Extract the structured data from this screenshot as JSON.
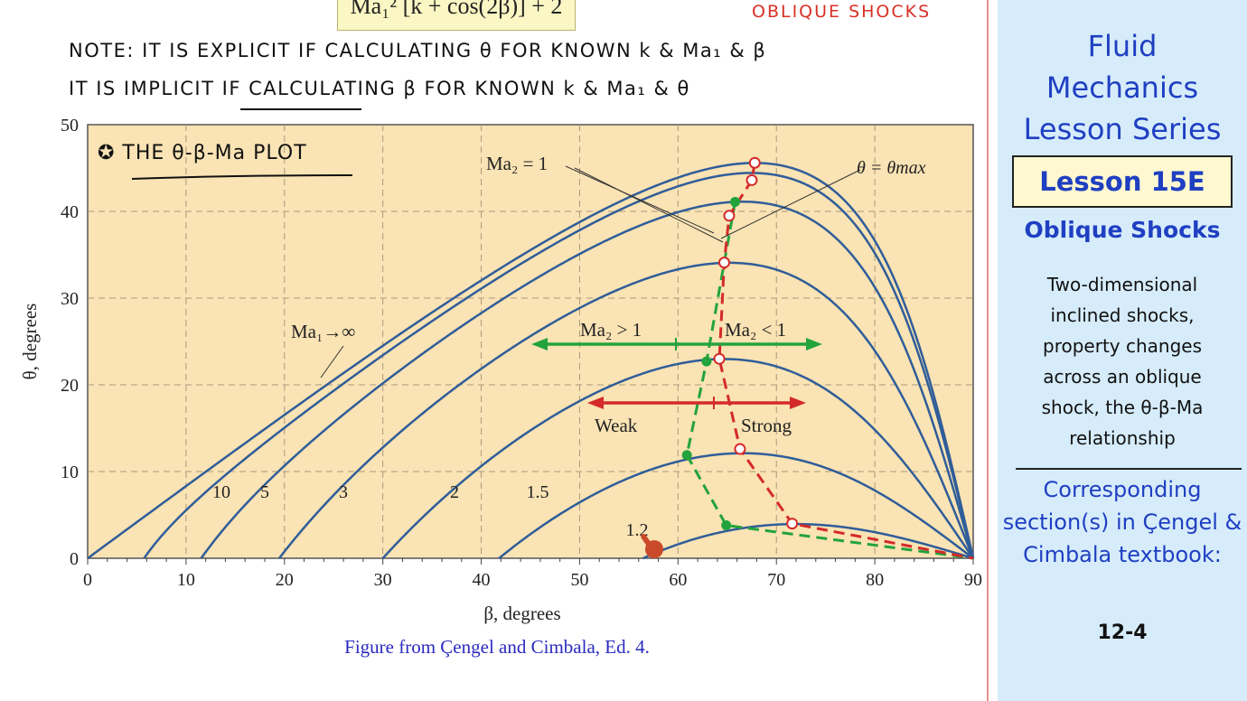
{
  "slide": {
    "top_formula": "Ma₁² [k + cos(2β)] + 2",
    "top_topic": "OBLIQUE SHOCKS",
    "note_line_1": "NOTE:  IT IS  EXPLICIT  IF CALCULATING θ  FOR KNOWN  k &  Ma₁  & β",
    "note_line_2": "IT IS  IMPLICIT  IF CALCULATING β  FOR KNOWN  k &  Ma₁  & θ",
    "plot_annotation": "✪ THE θ-β-Ma PLOT",
    "figure_credit": "Figure from Çengel and Cimbala, Ed. 4."
  },
  "sidebar": {
    "series_title": [
      "Fluid",
      "Mechanics",
      "Lesson Series"
    ],
    "lesson_number": "Lesson 15E",
    "lesson_topic": "Oblique Shocks",
    "description": "Two-dimensional inclined shocks, property changes across an oblique shock, the θ-β-Ma relationship",
    "sections_label": "Corresponding section(s) in Çengel & Cimbala textbook:",
    "sections_number": "12-4"
  },
  "colors": {
    "plot_background": "#fae3b4",
    "curve": "#2f5d99",
    "grid": "#a89a80",
    "sonic_line": "#23a33c",
    "max_line": "#d42a2a",
    "arrow_green": "#23a33c",
    "arrow_red": "#d42a2a",
    "sidebar_background": "#d6ecfa",
    "sidebar_title": "#1f3fc2",
    "credit_text": "#2a2ac0"
  },
  "chart_data": {
    "type": "line",
    "xlabel": "β, degrees",
    "ylabel": "θ, degrees",
    "xlim": [
      0,
      90
    ],
    "ylim": [
      0,
      50
    ],
    "xticks": [
      0,
      10,
      20,
      30,
      40,
      50,
      60,
      70,
      80,
      90
    ],
    "yticks": [
      0,
      10,
      20,
      30,
      40,
      50
    ],
    "grid": true,
    "gamma": 1.4,
    "series": [
      {
        "name": "Ma₁→∞",
        "mach": 1000
      },
      {
        "name": "10",
        "mach": 10
      },
      {
        "name": "5",
        "mach": 5
      },
      {
        "name": "3",
        "mach": 3
      },
      {
        "name": "2",
        "mach": 2
      },
      {
        "name": "1.5",
        "mach": 1.5
      },
      {
        "name": "1.2",
        "mach": 1.2
      }
    ],
    "sonic_points": [
      [
        65.8,
        41.1
      ],
      [
        64.7,
        34.1
      ],
      [
        62.9,
        22.7
      ],
      [
        60.9,
        11.9
      ],
      [
        64.9,
        3.8
      ]
    ],
    "max_points": [
      [
        67.8,
        45.6
      ],
      [
        67.5,
        43.6
      ],
      [
        65.2,
        39.5
      ],
      [
        64.7,
        34.1
      ],
      [
        64.2,
        23.0
      ],
      [
        66.3,
        12.6
      ],
      [
        71.6,
        4.0
      ]
    ],
    "annotations": {
      "ma2_equals_1": "Ma₂ = 1",
      "theta_max": "θ = θmax",
      "ma2_greater": "Ma₂ > 1",
      "ma2_less": "Ma₂ < 1",
      "weak": "Weak",
      "strong": "Strong"
    }
  }
}
